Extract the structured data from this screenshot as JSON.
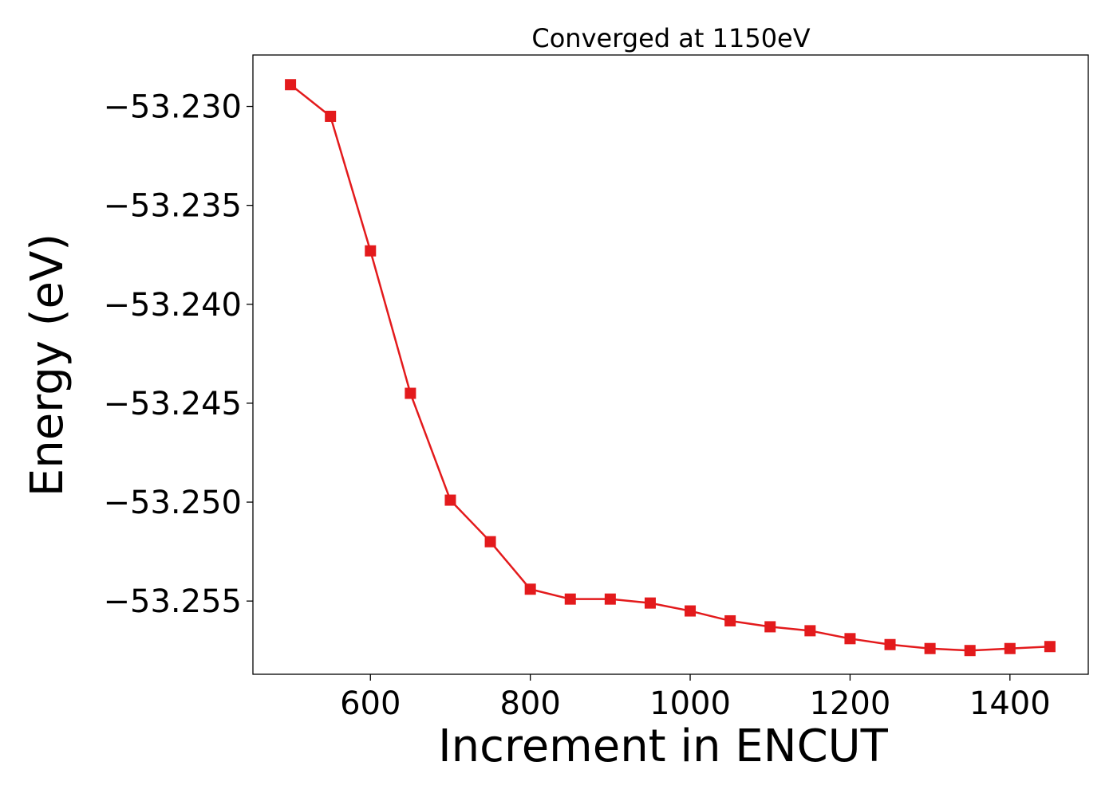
{
  "chart_data": {
    "type": "line",
    "title": "Converged at 1150eV",
    "xlabel": "Increment in ENCUT",
    "ylabel": "Energy (eV)",
    "xlim": [
      453,
      1498
    ],
    "ylim": [
      -53.2587,
      -53.2274
    ],
    "x_ticks": [
      600,
      800,
      1000,
      1200,
      1400
    ],
    "y_ticks": [
      -53.23,
      -53.235,
      -53.24,
      -53.245,
      -53.25,
      -53.255
    ],
    "x_tick_labels": [
      "600",
      "800",
      "1000",
      "1200",
      "1400"
    ],
    "y_tick_labels": [
      "−53.230",
      "−53.235",
      "−53.240",
      "−53.245",
      "−53.250",
      "−53.255"
    ],
    "grid": false,
    "color": "#e31a1c",
    "marker": "square",
    "series": [
      {
        "x": [
          500,
          550,
          600,
          650,
          700,
          750,
          800,
          850,
          900,
          950,
          1000,
          1050,
          1100,
          1150,
          1200,
          1250,
          1300,
          1350,
          1400,
          1450
        ],
        "y": [
          -53.2289,
          -53.2305,
          -53.2373,
          -53.2445,
          -53.2499,
          -53.252,
          -53.2544,
          -53.2549,
          -53.2549,
          -53.2551,
          -53.2555,
          -53.256,
          -53.2563,
          -53.2565,
          -53.2569,
          -53.2572,
          -53.2574,
          -53.2575,
          -53.2574,
          -53.2573
        ]
      }
    ]
  }
}
